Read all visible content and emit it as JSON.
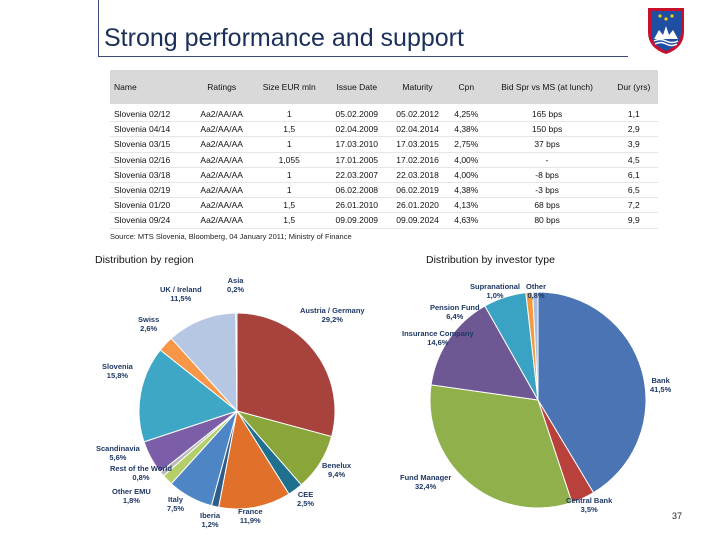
{
  "slide": {
    "title": "Strong performance and support",
    "page_number": "37"
  },
  "table": {
    "headers": [
      "Name",
      "Ratings",
      "Size EUR mln",
      "Issue Date",
      "Maturity",
      "Cpn",
      "Bid Spr vs MS (at lunch)",
      "Dur (yrs)"
    ],
    "rows": [
      [
        "Slovenia 02/12",
        "Aa2/AA/AA",
        "1",
        "05.02.2009",
        "05.02.2012",
        "4,25%",
        "165 bps",
        "1,1"
      ],
      [
        "Slovenia 04/14",
        "Aa2/AA/AA",
        "1,5",
        "02.04.2009",
        "02.04.2014",
        "4,38%",
        "150 bps",
        "2,9"
      ],
      [
        "Slovenia 03/15",
        "Aa2/AA/AA",
        "1",
        "17.03.2010",
        "17.03.2015",
        "2,75%",
        "37 bps",
        "3,9"
      ],
      [
        "Slovenia 02/16",
        "Aa2/AA/AA",
        "1,055",
        "17.01.2005",
        "17.02.2016",
        "4,00%",
        "-",
        "4,5"
      ],
      [
        "Slovenia 03/18",
        "Aa2/AA/AA",
        "1",
        "22.03.2007",
        "22.03.2018",
        "4,00%",
        "-8 bps",
        "6,1"
      ],
      [
        "Slovenia 02/19",
        "Aa2/AA/AA",
        "1",
        "06.02.2008",
        "06.02.2019",
        "4,38%",
        "-3 bps",
        "6,5"
      ],
      [
        "Slovenia 01/20",
        "Aa2/AA/AA",
        "1,5",
        "26.01.2010",
        "26.01.2020",
        "4,13%",
        "68 bps",
        "7,2"
      ],
      [
        "Slovenia 09/24",
        "Aa2/AA/AA",
        "1,5",
        "09.09.2009",
        "09.09.2024",
        "4,63%",
        "80 bps",
        "9,9"
      ]
    ],
    "source": "Source: MTS Slovenia, Bloomberg, 04  January 2011; Ministry of Finance"
  },
  "chart_data": [
    {
      "type": "pie",
      "title": "Distribution by region",
      "labels": [
        "Austria / Germany",
        "Benelux",
        "CEE",
        "France",
        "Iberia",
        "Italy",
        "Other EMU",
        "Rest of the World",
        "Scandinavia",
        "Slovenia",
        "Swiss",
        "UK / Ireland",
        "Asia"
      ],
      "values": [
        29.2,
        9.4,
        2.5,
        11.9,
        1.2,
        7.5,
        1.8,
        0.8,
        5.6,
        15.8,
        2.6,
        11.5,
        0.2
      ],
      "value_labels": [
        "29,2%",
        "9,4%",
        "2,5%",
        "11,9%",
        "1,2%",
        "7,5%",
        "1,8%",
        "0,8%",
        "5,6%",
        "15,8%",
        "2,6%",
        "11,5%",
        "0,2%"
      ],
      "colors": [
        "#a8423d",
        "#8aa63a",
        "#1f6f8f",
        "#e0702a",
        "#2f5d8a",
        "#4e86c5",
        "#b4cf6a",
        "#b8b8b8",
        "#7b5ea7",
        "#3ea7c6",
        "#f79646",
        "#b6c7e3",
        "#5b9bd5"
      ]
    },
    {
      "type": "pie",
      "title": "Distribution by investor type",
      "labels": [
        "Bank",
        "Central Bank",
        "Fund Manager",
        "Insurance Company",
        "Pension Fund",
        "Supranational",
        "Other"
      ],
      "values": [
        41.5,
        3.5,
        32.4,
        14.6,
        6.4,
        1.0,
        0.8
      ],
      "value_labels": [
        "41,5%",
        "3,5%",
        "32,4%",
        "14,6%",
        "6,4%",
        "1,0%",
        "0,8%"
      ],
      "colors": [
        "#4a74b4",
        "#b9413c",
        "#8fb04a",
        "#6e5894",
        "#3aa2c2",
        "#f39a3e",
        "#a6bde0"
      ]
    }
  ]
}
